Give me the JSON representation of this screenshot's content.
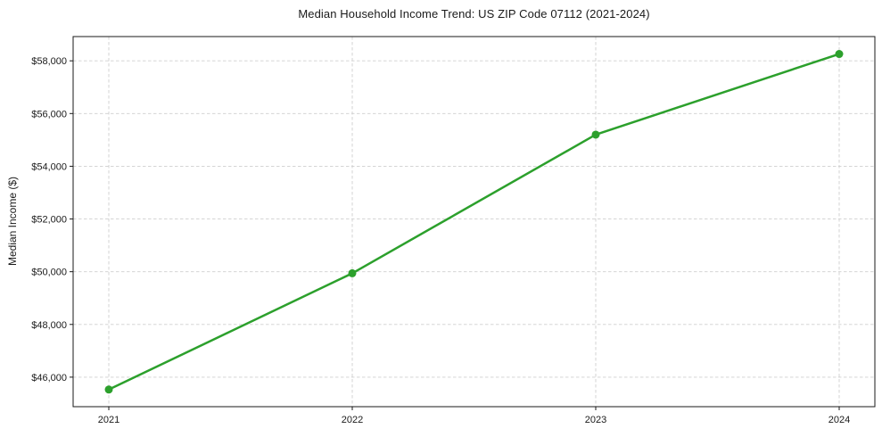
{
  "chart_data": {
    "type": "line",
    "title": "Median Household Income Trend: US ZIP Code 07112 (2021-2024)",
    "xlabel": "",
    "ylabel": "Median Income ($)",
    "categories": [
      "2021",
      "2022",
      "2023",
      "2024"
    ],
    "series": [
      {
        "name": "Median Household Income",
        "values": [
          45530,
          49940,
          55200,
          58260
        ],
        "color": "#2ca02c",
        "marker": "circle",
        "line_width": 2.5,
        "marker_radius": 4.5
      }
    ],
    "ylim": [
      44880,
      58920
    ],
    "yticks": [
      46000,
      48000,
      50000,
      52000,
      54000,
      56000,
      58000
    ],
    "ytick_labels": [
      "$46,000",
      "$48,000",
      "$50,000",
      "$52,000",
      "$54,000",
      "$56,000",
      "$58,000"
    ],
    "grid": true,
    "grid_style": "dashed",
    "legend": false,
    "colors": {
      "line": "#2ca02c",
      "grid": "#cfcfcf",
      "spine": "#1a1a1a",
      "tick": "#1a1a1a",
      "text": "#1a1a1a",
      "background": "#ffffff"
    }
  }
}
